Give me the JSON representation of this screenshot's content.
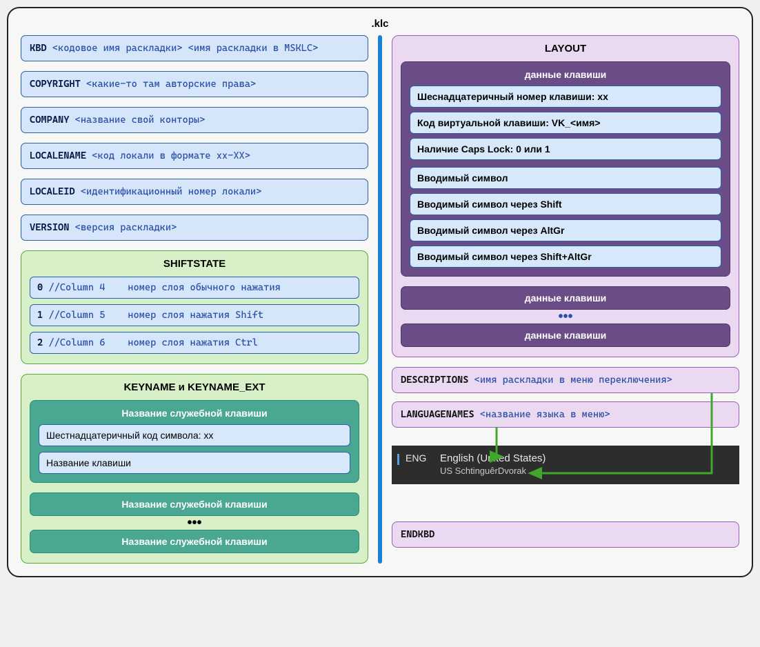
{
  "title": ".klc",
  "left": {
    "rows": [
      {
        "kw": "KBD",
        "ph": "<кодовое имя раскладки> <имя раскладки в MSKLC>"
      },
      {
        "kw": "COPYRIGHT",
        "ph": "<какие-то там авторские права>"
      },
      {
        "kw": "COMPANY",
        "ph": "<название свой конторы>"
      },
      {
        "kw": "LOCALENAME",
        "ph": "<код локали в формате xx-XX>"
      },
      {
        "kw": "LOCALEID",
        "ph": "<идентификационный номер локали>"
      },
      {
        "kw": "VERSION",
        "ph": "<версия раскладки>"
      }
    ],
    "shiftstate": {
      "title": "SHIFTSTATE",
      "rows": [
        {
          "n": "0",
          "c": "//Column 4",
          "d": "номер слоя обычного нажатия"
        },
        {
          "n": "1",
          "c": "//Column 5",
          "d": "номер слоя нажатия Shift"
        },
        {
          "n": "2",
          "c": "//Column 6",
          "d": "номер слоя нажатия Ctrl"
        }
      ]
    },
    "keyname": {
      "title": "KEYNAME и KEYNAME_EXT",
      "inner_title": "Название служебной клавиши",
      "row1": "Шестнадцатеричный код символа: xx",
      "row2": "Название клавиши",
      "bar": "Название служебной клавиши",
      "dots": "•••"
    }
  },
  "right": {
    "layout": {
      "title": "LAYOUT",
      "inner_title": "данные клавиши",
      "rows_a": [
        "Шеснадцатеричный номер клавиши: xx",
        "Код виртуальной клавиши: VK_<имя>",
        "Наличие Caps Lock: 0 или 1"
      ],
      "rows_b": [
        "Вводимый символ",
        "Вводимый символ через Shift",
        "Вводимый символ через AltGr",
        "Вводимый символ через Shift+AltGr"
      ],
      "bar": "данные клавиши",
      "dots": "•••"
    },
    "descriptions": {
      "kw": "DESCRIPTIONS",
      "ph": "<имя раскладки в меню переключения>"
    },
    "languagenames": {
      "kw": "LANGUAGENAMES",
      "ph": "<название языка в меню>"
    },
    "preview": {
      "code": "ENG",
      "line1": "English (United States)",
      "line2": "US SchtinguêrDvorak"
    },
    "endkbd": "ENDKBD"
  },
  "colors": {
    "arrow": "#3fa82a"
  }
}
